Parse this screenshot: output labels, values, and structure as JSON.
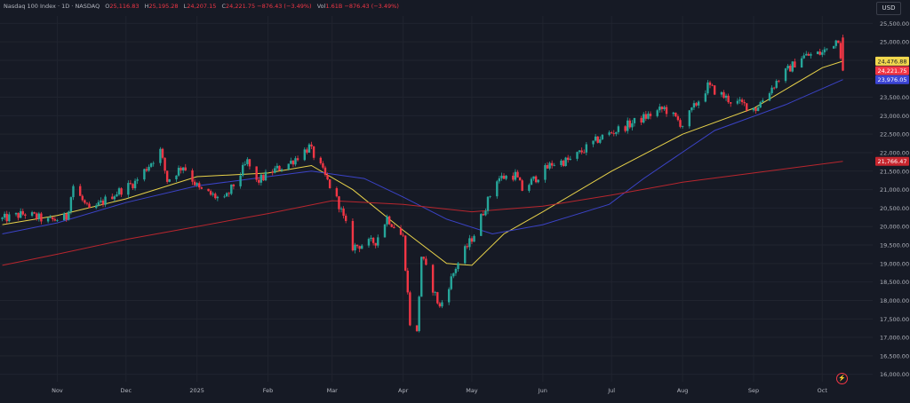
{
  "header": {
    "symbol": "Nasdaq 100 Index · 1D · NASDAQ",
    "open_label": "O",
    "open": "25,116.83",
    "high_label": "H",
    "high": "25,195.28",
    "low_label": "L",
    "low": "24,207.15",
    "close_label": "C",
    "close": "24,221.75",
    "change": "−876.43 (−3.49%)",
    "vol_label": "Vol",
    "vol": "1.61B",
    "vol_change": "−876.43 (−3.49%)"
  },
  "currency": "USD",
  "flash_icon": "lightning-icon",
  "chart_data": {
    "type": "candlestick",
    "ylim": [
      15800,
      25700
    ],
    "y_ticks": [
      16000,
      16500,
      17000,
      17500,
      18000,
      18500,
      19000,
      19500,
      20000,
      20500,
      21000,
      21500,
      22000,
      22500,
      23000,
      23500,
      24000,
      24500,
      25000,
      25500
    ],
    "y_tick_labels": [
      "16,000.00",
      "16,500.00",
      "17,000.00",
      "17,500.00",
      "18,000.00",
      "18,500.00",
      "19,000.00",
      "19,500.00",
      "20,000.00",
      "20,500.00",
      "21,000.00",
      "21,500.00",
      "22,000.00",
      "22,500.00",
      "23,000.00",
      "23,500.00",
      "24,000.00",
      "24,500.00",
      "25,000.00",
      "25,500.00"
    ],
    "x_ticks": [
      {
        "label": "Nov",
        "x": "2024-11-01"
      },
      {
        "label": "Dec",
        "x": "2024-12-01"
      },
      {
        "label": "2025",
        "x": "2025-01-01"
      },
      {
        "label": "Feb",
        "x": "2025-02-01"
      },
      {
        "label": "Mar",
        "x": "2025-03-01"
      },
      {
        "label": "Apr",
        "x": "2025-04-01"
      },
      {
        "label": "May",
        "x": "2025-05-01"
      },
      {
        "label": "Jun",
        "x": "2025-06-01"
      },
      {
        "label": "Jul",
        "x": "2025-07-01"
      },
      {
        "label": "Aug",
        "x": "2025-08-01"
      },
      {
        "label": "Sep",
        "x": "2025-09-01"
      },
      {
        "label": "Oct",
        "x": "2025-10-01"
      }
    ],
    "xlim": [
      "2024-10-07",
      "2025-10-23"
    ],
    "price_path": [
      [
        "2024-10-08",
        20200
      ],
      [
        "2024-10-18",
        20350
      ],
      [
        "2024-10-28",
        20150
      ],
      [
        "2024-11-05",
        20250
      ],
      [
        "2024-11-08",
        21100
      ],
      [
        "2024-11-15",
        20400
      ],
      [
        "2024-11-25",
        20850
      ],
      [
        "2024-12-05",
        21200
      ],
      [
        "2024-12-16",
        22050
      ],
      [
        "2024-12-19",
        21250
      ],
      [
        "2024-12-26",
        21650
      ],
      [
        "2025-01-02",
        21000
      ],
      [
        "2025-01-13",
        20700
      ],
      [
        "2025-01-23",
        21750
      ],
      [
        "2025-01-27",
        21200
      ],
      [
        "2025-02-03",
        21500
      ],
      [
        "2025-02-10",
        21700
      ],
      [
        "2025-02-19",
        22150
      ],
      [
        "2025-02-24",
        21600
      ],
      [
        "2025-03-04",
        20600
      ],
      [
        "2025-03-10",
        19450
      ],
      [
        "2025-03-20",
        19600
      ],
      [
        "2025-03-25",
        20250
      ],
      [
        "2025-04-01",
        19700
      ],
      [
        "2025-04-04",
        17400
      ],
      [
        "2025-04-07",
        17100
      ],
      [
        "2025-04-09",
        19200
      ],
      [
        "2025-04-17",
        17800
      ],
      [
        "2025-04-24",
        18900
      ],
      [
        "2025-05-02",
        19800
      ],
      [
        "2025-05-12",
        21300
      ],
      [
        "2025-05-20",
        21400
      ],
      [
        "2025-05-23",
        21000
      ],
      [
        "2025-06-05",
        21700
      ],
      [
        "2025-06-13",
        21800
      ],
      [
        "2025-06-26",
        22400
      ],
      [
        "2025-07-10",
        22800
      ],
      [
        "2025-07-24",
        23200
      ],
      [
        "2025-08-01",
        22750
      ],
      [
        "2025-08-12",
        23800
      ],
      [
        "2025-08-22",
        23400
      ],
      [
        "2025-09-02",
        23200
      ],
      [
        "2025-09-12",
        24000
      ],
      [
        "2025-09-22",
        24600
      ],
      [
        "2025-10-01",
        24700
      ],
      [
        "2025-10-08",
        25100
      ],
      [
        "2025-10-10",
        24222
      ]
    ],
    "last_candle": {
      "x": "2025-10-10",
      "open": 25116.83,
      "high": 25195.28,
      "low": 24207.15,
      "close": 24221.75
    },
    "series": [
      {
        "color": "#e8d24a",
        "points": [
          [
            "2024-10-08",
            20050
          ],
          [
            "2024-11-01",
            20300
          ],
          [
            "2024-12-01",
            20750
          ],
          [
            "2025-01-01",
            21350
          ],
          [
            "2025-02-01",
            21450
          ],
          [
            "2025-02-20",
            21650
          ],
          [
            "2025-03-10",
            21000
          ],
          [
            "2025-04-01",
            19900
          ],
          [
            "2025-04-20",
            19000
          ],
          [
            "2025-05-01",
            18950
          ],
          [
            "2025-05-15",
            19800
          ],
          [
            "2025-06-01",
            20400
          ],
          [
            "2025-07-01",
            21500
          ],
          [
            "2025-08-01",
            22500
          ],
          [
            "2025-09-01",
            23200
          ],
          [
            "2025-10-01",
            24300
          ],
          [
            "2025-10-10",
            24476.88
          ]
        ]
      },
      {
        "color": "#3b43c7",
        "points": [
          [
            "2024-10-08",
            19800
          ],
          [
            "2024-11-01",
            20100
          ],
          [
            "2024-12-01",
            20650
          ],
          [
            "2025-01-01",
            21100
          ],
          [
            "2025-02-01",
            21350
          ],
          [
            "2025-02-20",
            21500
          ],
          [
            "2025-03-15",
            21300
          ],
          [
            "2025-04-01",
            20800
          ],
          [
            "2025-04-20",
            20200
          ],
          [
            "2025-05-10",
            19800
          ],
          [
            "2025-06-01",
            20050
          ],
          [
            "2025-06-30",
            20600
          ],
          [
            "2025-07-15",
            21300
          ],
          [
            "2025-08-15",
            22600
          ],
          [
            "2025-09-15",
            23300
          ],
          [
            "2025-10-10",
            23976.05
          ]
        ]
      },
      {
        "color": "#b8262e",
        "points": [
          [
            "2024-10-08",
            18950
          ],
          [
            "2024-11-01",
            19250
          ],
          [
            "2024-12-01",
            19650
          ],
          [
            "2025-01-01",
            20000
          ],
          [
            "2025-02-01",
            20350
          ],
          [
            "2025-03-01",
            20700
          ],
          [
            "2025-04-01",
            20600
          ],
          [
            "2025-05-01",
            20400
          ],
          [
            "2025-06-01",
            20550
          ],
          [
            "2025-07-01",
            20850
          ],
          [
            "2025-08-01",
            21200
          ],
          [
            "2025-09-01",
            21450
          ],
          [
            "2025-10-10",
            21766.47
          ]
        ]
      }
    ],
    "price_labels": [
      {
        "text": "24,476.88",
        "value": 24476.88,
        "bg": "#f2d94e",
        "fg": "#131722"
      },
      {
        "text": "24,221.75",
        "value": 24221.75,
        "bg": "#f23645",
        "fg": "#ffffff"
      },
      {
        "text": "23,976.05",
        "value": 23976.05,
        "bg": "#3c45d6",
        "fg": "#ffffff"
      },
      {
        "text": "21,766.47",
        "value": 21766.47,
        "bg": "#c8262e",
        "fg": "#ffffff"
      }
    ],
    "colors": {
      "up": "#26a69a",
      "down": "#f23645",
      "grid": "#20242f",
      "axis_text": "#b2b5be",
      "bg": "#161a25"
    },
    "grid": true
  }
}
